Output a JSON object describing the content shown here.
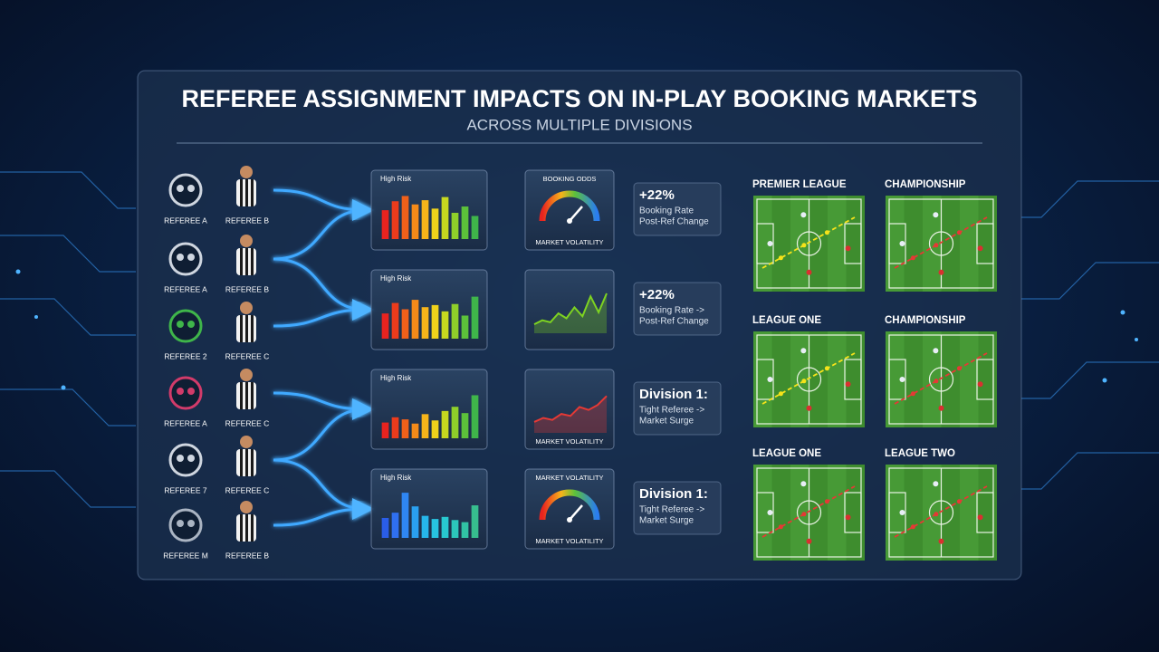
{
  "header": {
    "title": "REFEREE ASSIGNMENT IMPACTS ON IN-PLAY BOOKING MARKETS",
    "subtitle": "ACROSS MULTIPLE DIVISIONS"
  },
  "referees": [
    {
      "crest": "REFEREE A",
      "official": "REFEREE B"
    },
    {
      "crest": "REFEREE A",
      "official": "REFEREE B"
    },
    {
      "crest": "REFEREE 2",
      "official": "REFEREE C"
    },
    {
      "crest": "REFEREE A",
      "official": "REFEREE C"
    },
    {
      "crest": "REFEREE 7",
      "official": "REFEREE C"
    },
    {
      "crest": "REFEREE M",
      "official": "REFEREE B"
    }
  ],
  "risk_charts": [
    {
      "label": "High Risk",
      "values": [
        55,
        72,
        82,
        66,
        74,
        58,
        80,
        50,
        62,
        44
      ],
      "colors": [
        "#e8231f",
        "#ec3b1c",
        "#f0601a",
        "#f48a19",
        "#f6b41a",
        "#efd21b",
        "#c6d81f",
        "#8fcf2a",
        "#5cc13a",
        "#3fb54a"
      ]
    },
    {
      "label": "High Risk",
      "values": [
        48,
        68,
        56,
        74,
        60,
        64,
        52,
        66,
        44,
        80
      ],
      "colors": [
        "#e8231f",
        "#ec3b1c",
        "#f0601a",
        "#f48a19",
        "#f6b41a",
        "#efd21b",
        "#c6d81f",
        "#8fcf2a",
        "#5cc13a",
        "#3fb54a"
      ]
    },
    {
      "label": "High Risk",
      "values": [
        30,
        40,
        36,
        28,
        46,
        34,
        52,
        60,
        48,
        82
      ],
      "colors": [
        "#e8231f",
        "#ec3b1c",
        "#f0601a",
        "#f48a19",
        "#f6b41a",
        "#efd21b",
        "#c6d81f",
        "#8fcf2a",
        "#5cc13a",
        "#3fb54a"
      ]
    },
    {
      "label": "High Risk",
      "values": [
        38,
        48,
        86,
        60,
        42,
        36,
        40,
        34,
        30,
        62
      ],
      "colors": [
        "#2a5de8",
        "#2f6ff0",
        "#2f86f2",
        "#2aa0f0",
        "#26b6ea",
        "#27c4e0",
        "#28c9d0",
        "#2cc6bb",
        "#31c2a4",
        "#37be8e"
      ]
    }
  ],
  "market_panels": [
    {
      "type": "gauge",
      "top": "BOOKING ODDS",
      "bottom": "MARKET VOLATILITY"
    },
    {
      "type": "line",
      "values": [
        18,
        26,
        22,
        40,
        30,
        52,
        34,
        74,
        42,
        80
      ],
      "color": "#7ed321"
    },
    {
      "type": "line",
      "values": [
        22,
        30,
        26,
        38,
        34,
        52,
        46,
        56,
        74
      ],
      "color": "#e53935",
      "bottom": "MARKET VOLATILITY"
    },
    {
      "type": "gauge",
      "top": "MARKET VOLATILITY",
      "bottom": "MARKET VOLATILITY"
    }
  ],
  "callouts": [
    {
      "headline": "+22%",
      "lines": [
        "Booking Rate",
        "Post-Ref Change"
      ]
    },
    {
      "headline": "+22%",
      "lines": [
        "Booking Rate ->",
        "Post-Ref Change"
      ]
    },
    {
      "headline": "Division 1:",
      "lines": [
        "Tight Referee ->",
        "Market Surge"
      ]
    },
    {
      "headline": "Division 1:",
      "lines": [
        "Tight Referee ->",
        "Market Surge"
      ]
    }
  ],
  "pitches": [
    {
      "league": "PREMIER LEAGUE",
      "line_color": "#f5e31a"
    },
    {
      "league": "CHAMPIONSHIP",
      "line_color": "#e53935"
    },
    {
      "league": "LEAGUE ONE",
      "line_color": "#f5e31a"
    },
    {
      "league": "CHAMPIONSHIP",
      "line_color": "#e53935"
    },
    {
      "league": "LEAGUE ONE",
      "line_color": "#e53935"
    },
    {
      "league": "LEAGUE TWO",
      "line_color": "#e53935"
    }
  ]
}
